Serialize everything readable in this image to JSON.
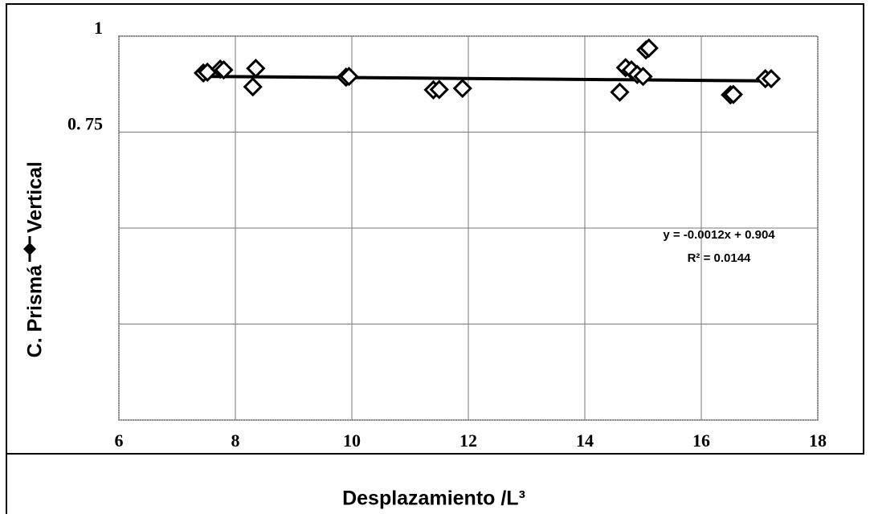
{
  "chart_data": {
    "type": "scatter",
    "ylabel_parts": [
      "C. Prismá",
      "Vertical"
    ],
    "xlabel": "Desplazamiento /L³",
    "series": [
      {
        "name": "Vertical",
        "color": "#000000",
        "x": [
          7.45,
          7.52,
          7.74,
          7.8,
          8.3,
          8.35,
          9.9,
          9.95,
          11.4,
          11.5,
          11.9,
          14.6,
          14.7,
          14.8,
          14.9,
          15.0,
          15.05,
          15.1,
          16.5,
          16.55,
          17.1,
          17.2
        ],
        "values": [
          0.904,
          0.906,
          0.914,
          0.912,
          0.868,
          0.916,
          0.893,
          0.895,
          0.86,
          0.861,
          0.864,
          0.854,
          0.918,
          0.912,
          0.9,
          0.895,
          0.964,
          0.969,
          0.847,
          0.848,
          0.889,
          0.889
        ]
      }
    ],
    "trendline": {
      "slope": -0.0012,
      "intercept": 0.904,
      "x_range": [
        7.45,
        17.2
      ],
      "equation": "y = -0.0012x + 0.904",
      "r2": "R² = 0.0144"
    },
    "xlim": [
      6,
      18
    ],
    "xticks": [
      6,
      8,
      10,
      12,
      14,
      16,
      18
    ],
    "ylim": [
      0,
      1
    ],
    "yticks": [
      {
        "value": 0.75,
        "label": "0. 75"
      },
      1
    ],
    "ygrid": [
      0,
      0.25,
      0.5,
      0.75,
      1
    ],
    "grid": true
  }
}
